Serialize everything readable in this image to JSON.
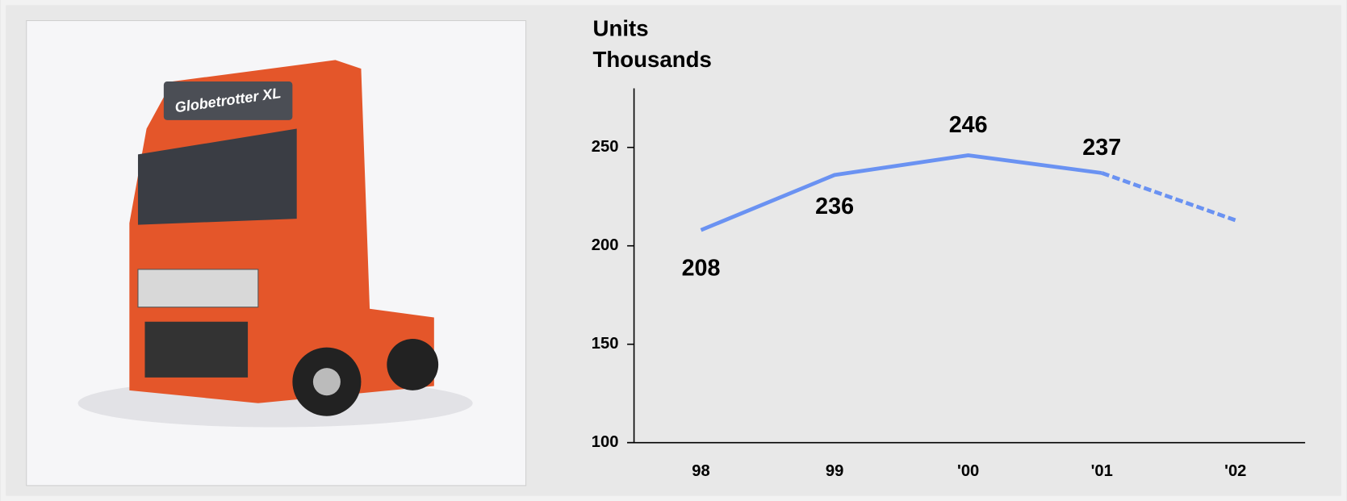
{
  "image_text": "Globetrotter XL",
  "chart_data": {
    "type": "line",
    "title": "Units",
    "subtitle": "Thousands",
    "categories": [
      "98",
      "99",
      "'00",
      "'01",
      "'02"
    ],
    "series": [
      {
        "color": "#6a92f2",
        "dashed": false,
        "show_labels": true,
        "values": [
          208,
          236,
          246,
          237,
          null
        ]
      },
      {
        "color": "#6a92f2",
        "dashed": true,
        "show_labels": false,
        "values": [
          null,
          null,
          null,
          237,
          213
        ]
      }
    ],
    "ylim": [
      100,
      280
    ],
    "yticks": [
      100,
      150,
      200,
      250
    ]
  }
}
